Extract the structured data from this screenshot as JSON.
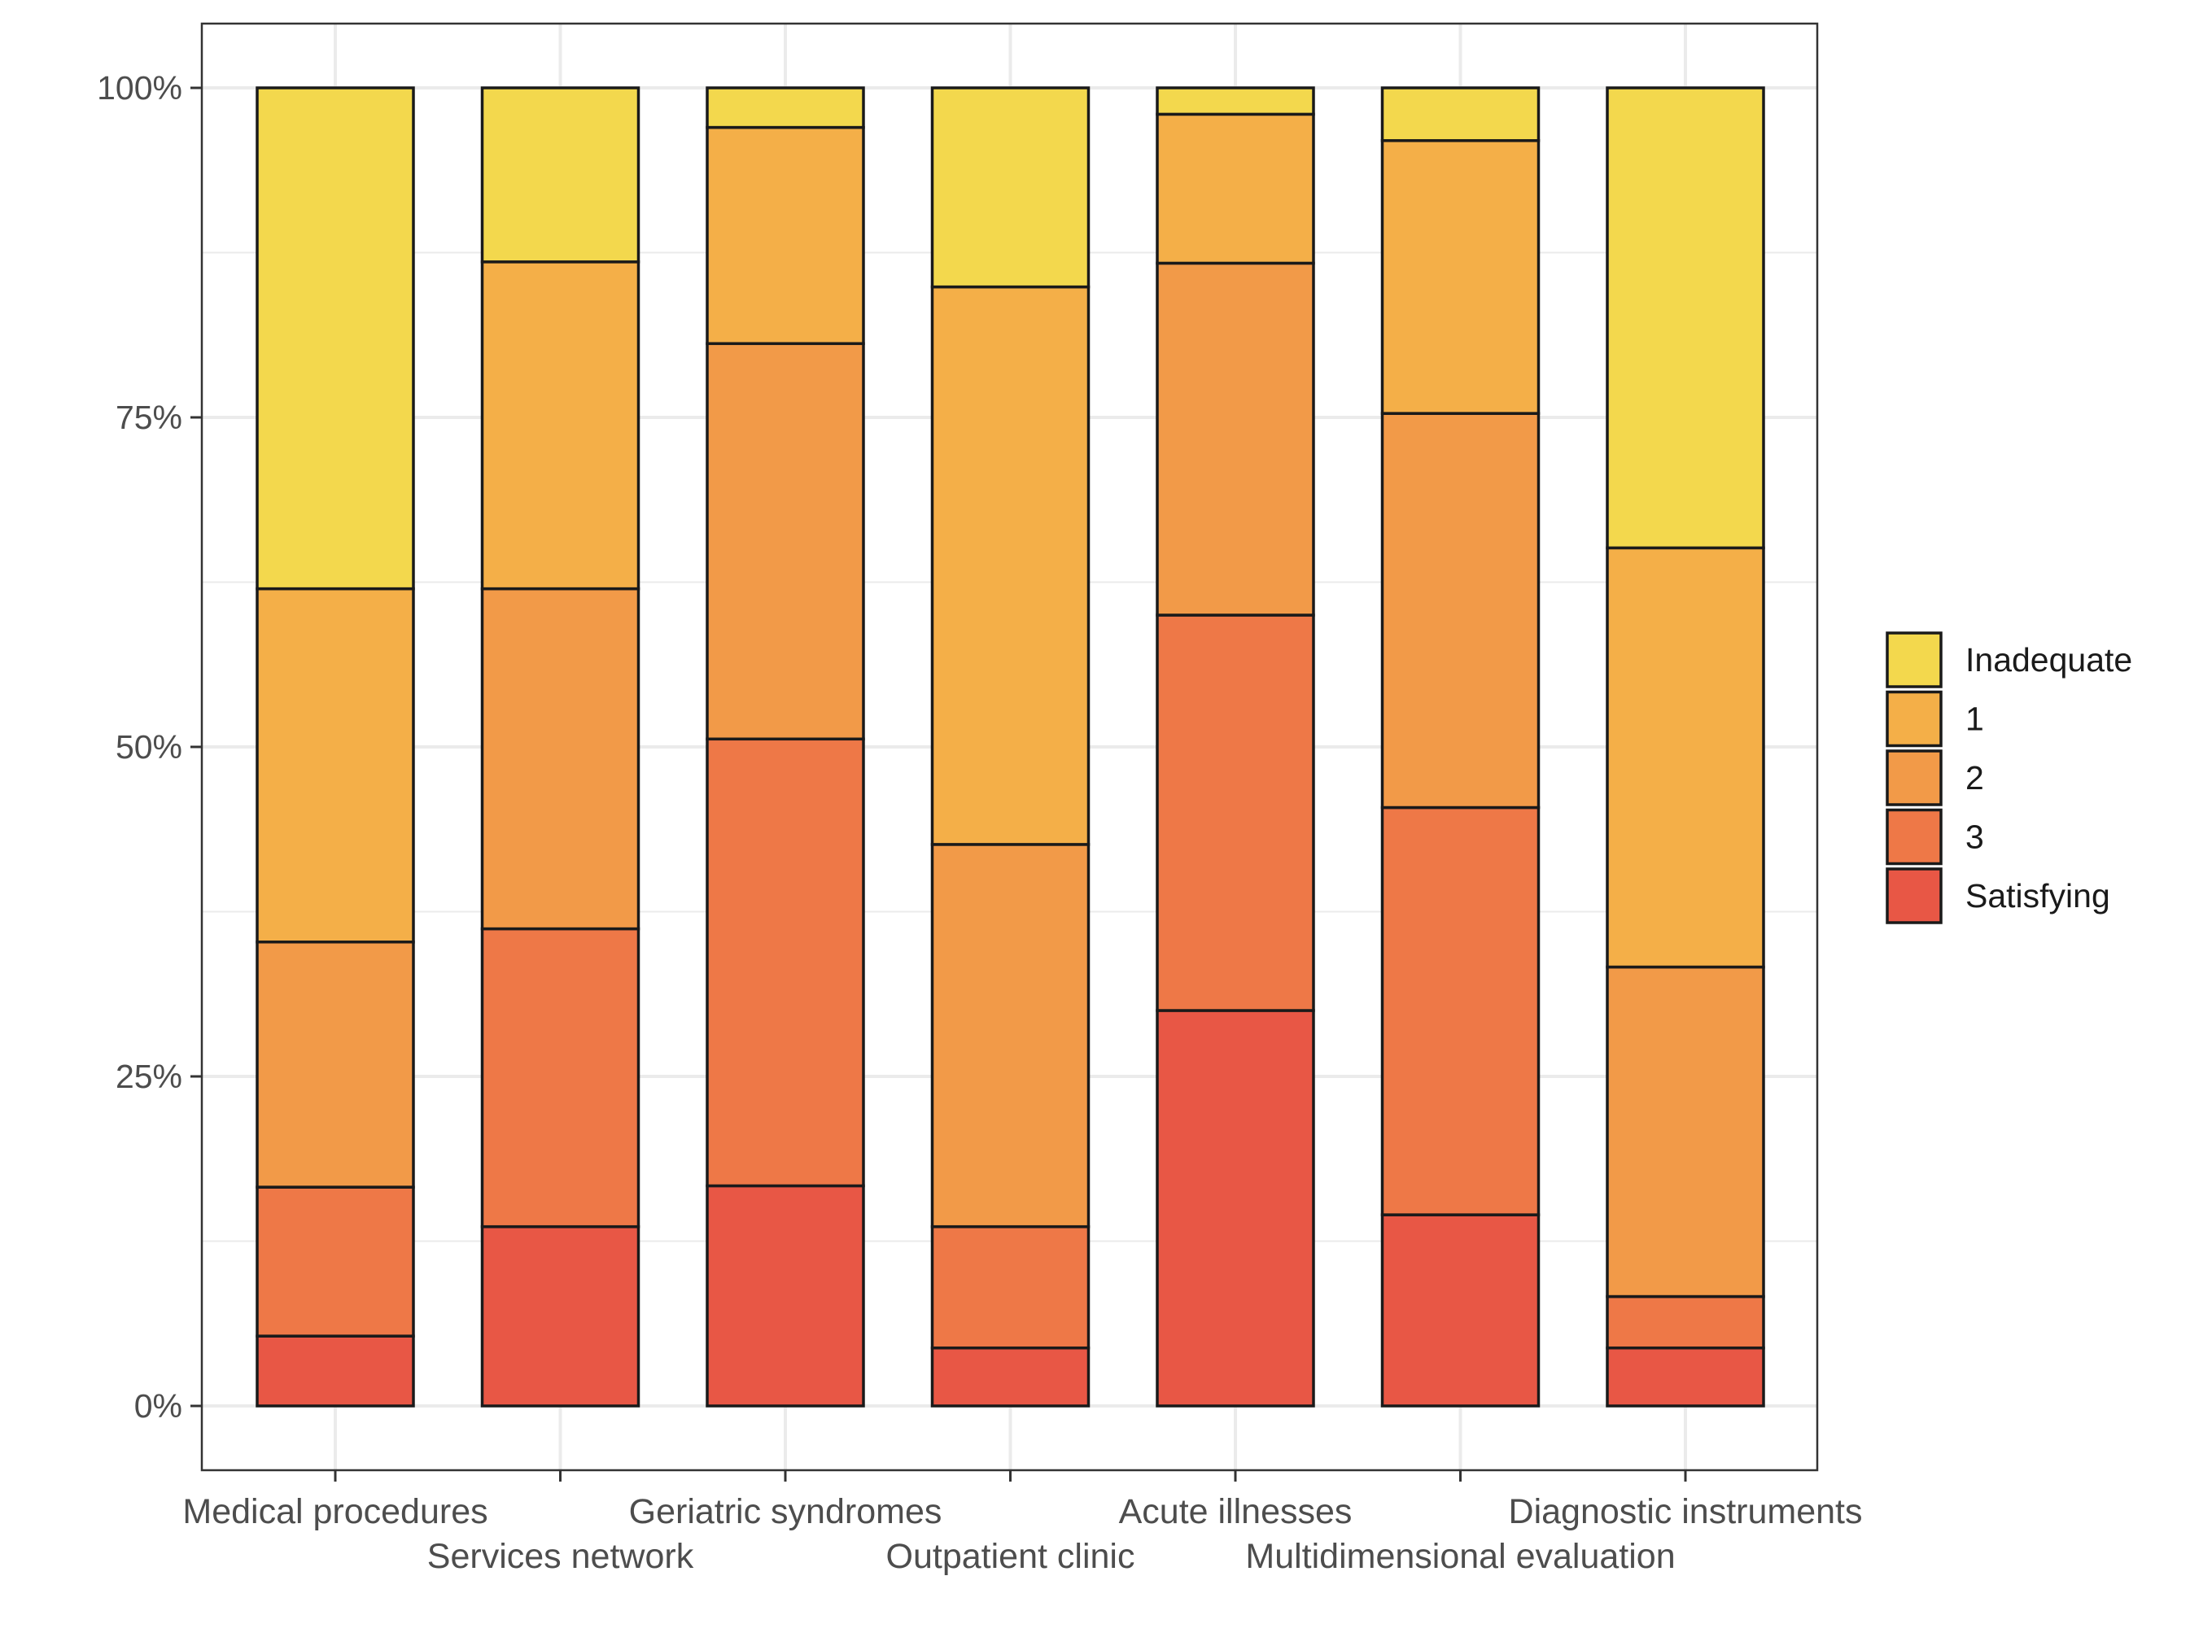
{
  "chart_data": {
    "type": "bar",
    "stacked": true,
    "normalized": true,
    "categories": [
      "Medical procedures",
      "Services network",
      "Geriatric syndromes",
      "Outpatient clinic",
      "Acute illnesses",
      "Multidimensional evaluation",
      "Diagnostic instruments"
    ],
    "series": [
      {
        "name": "Satisfying",
        "color": "#E85745",
        "values": [
          5.3,
          13.6,
          16.7,
          4.4,
          30.0,
          14.5,
          4.4
        ]
      },
      {
        "name": "3",
        "color": "#EE7847",
        "values": [
          11.3,
          22.6,
          33.9,
          9.2,
          30.0,
          30.9,
          3.9
        ]
      },
      {
        "name": "2",
        "color": "#F29A48",
        "values": [
          18.6,
          25.8,
          30.0,
          29.0,
          26.7,
          29.9,
          25.0
        ]
      },
      {
        "name": "1",
        "color": "#F4AF48",
        "values": [
          26.8,
          24.8,
          16.4,
          42.3,
          11.3,
          20.7,
          31.8
        ]
      },
      {
        "name": "Inadequate",
        "color": "#F3D84D",
        "values": [
          38.0,
          13.2,
          3.0,
          15.1,
          2.0,
          4.0,
          34.9
        ]
      }
    ],
    "y_ticks": [
      "0%",
      "25%",
      "50%",
      "75%",
      "100%"
    ],
    "ylim": [
      0,
      100
    ],
    "xlabel": "",
    "ylabel": "",
    "title": "",
    "legend": {
      "position": "right",
      "order": [
        "Inadequate",
        "1",
        "2",
        "3",
        "Satisfying"
      ]
    },
    "grid": true
  }
}
